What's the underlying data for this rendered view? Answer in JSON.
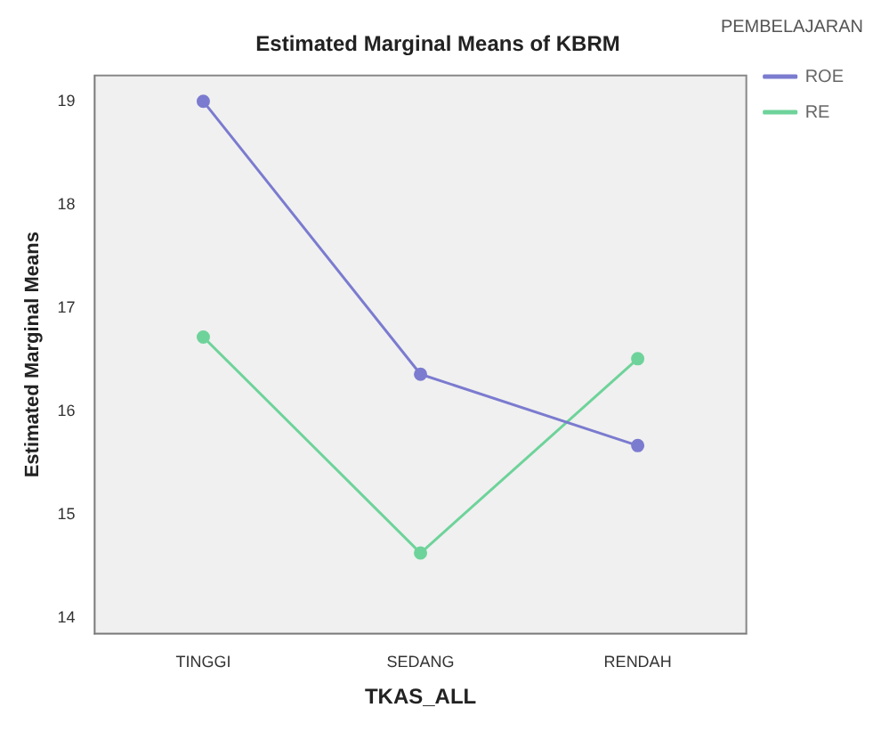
{
  "chart_data": {
    "type": "line",
    "title": "Estimated Marginal Means of KBRM",
    "xlabel": "TKAS_ALL",
    "ylabel": "Estimated Marginal Means",
    "legend_title": "PEMBELAJARAN",
    "legend": "top right",
    "marker": "circle",
    "categories": [
      "TINGGI",
      "SEDANG",
      "RENDAH"
    ],
    "series": [
      {
        "name": "ROE",
        "color": "#7b7bd0",
        "values": [
          19.0,
          16.36,
          15.67
        ]
      },
      {
        "name": "RE",
        "color": "#6ed39a",
        "values": [
          16.72,
          14.63,
          16.51
        ]
      }
    ],
    "ylim": [
      13.85,
      19.25
    ],
    "yticks": [
      14,
      15,
      16,
      17,
      18,
      19
    ]
  }
}
